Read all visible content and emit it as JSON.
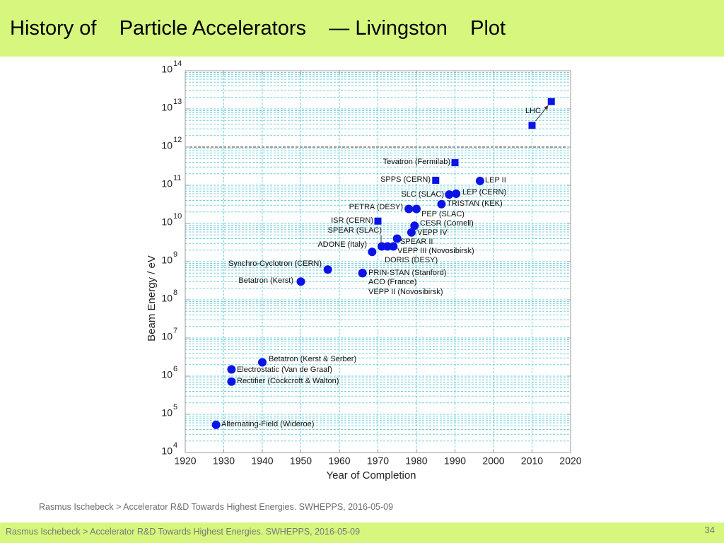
{
  "slide": {
    "title": "History of    Particle Accelerators    — Livingston    Plot",
    "footer_note": "Rasmus Ischebeck > Accelerator R&D Towards Highest Energies. SWHEPPS, 2016-05-09",
    "footer_text": "Rasmus Ischebeck > Accelerator R&D Towards Highest Energies. SWHEPPS, 2016-05-09",
    "page_number": "34"
  },
  "colors": {
    "bar_background": "#d6f67e",
    "marker": "#0a14e6",
    "grid": "#72cfdc",
    "highlight_gridline": "#333333",
    "frame": "#9a9a9a",
    "text": "#222222"
  },
  "chart_data": {
    "type": "scatter",
    "xlabel": "Year of Completion",
    "ylabel": "Beam Energy / eV",
    "xlim": [
      1920,
      2020
    ],
    "ylim": [
      10000.0,
      100000000000000.0
    ],
    "yscale": "log",
    "grid": true,
    "highlighted_gridline_y": 1000000000000.0,
    "x_ticks": [
      1920,
      1930,
      1940,
      1950,
      1960,
      1970,
      1980,
      1990,
      2000,
      2010,
      2020
    ],
    "y_tick_base": "10",
    "y_tick_exponents": [
      "4",
      "5",
      "6",
      "7",
      "8",
      "9",
      "10",
      "11",
      "12",
      "13",
      "14"
    ],
    "points": [
      {
        "label": "Alternating-Field (Wideroe)",
        "x": 1928,
        "y": 53000.0,
        "marker": "circle"
      },
      {
        "label": "Rectifier (Cockcroft & Walton)",
        "x": 1932,
        "y": 720000.0,
        "marker": "circle"
      },
      {
        "label": "Electrostatic (Van de Graaf)",
        "x": 1932,
        "y": 1500000.0,
        "marker": "circle"
      },
      {
        "label": "Betatron (Kerst & Serber)",
        "x": 1940,
        "y": 2300000.0,
        "marker": "circle"
      },
      {
        "label": "Betatron (Kerst)",
        "x": 1950,
        "y": 300000000.0,
        "marker": "circle"
      },
      {
        "label": "Synchro-Cyclotron (CERN)",
        "x": 1957,
        "y": 620000000.0,
        "marker": "circle"
      },
      {
        "label": "PRIN-STAN (Stanford)",
        "x": 1966,
        "y": 500000000.0,
        "marker": "circle"
      },
      {
        "label": "ACO (France)",
        "x": 1966,
        "y": 500000000.0,
        "marker": "circle"
      },
      {
        "label": "VEPP II (Novosibirsk)",
        "x": 1966,
        "y": 500000000.0,
        "marker": "circle"
      },
      {
        "label": "ADONE (Italy)",
        "x": 1968.5,
        "y": 1800000000.0,
        "marker": "circle"
      },
      {
        "label": "ISR (CERN)",
        "x": 1970,
        "y": 11500000000.0,
        "marker": "square"
      },
      {
        "label": "SPEAR (SLAC)",
        "x": 1971,
        "y": 2500000000.0,
        "marker": "circle"
      },
      {
        "label": "DORIS (DESY)",
        "x": 1972.5,
        "y": 2500000000.0,
        "marker": "circle"
      },
      {
        "label": "VEPP III (Novosibirsk)",
        "x": 1974,
        "y": 2500000000.0,
        "marker": "circle"
      },
      {
        "label": "SPEAR II",
        "x": 1975,
        "y": 4000000000.0,
        "marker": "circle"
      },
      {
        "label": "VEPP IV",
        "x": 1978.7,
        "y": 5800000000.0,
        "marker": "circle"
      },
      {
        "label": "CESR (Cornell)",
        "x": 1979.5,
        "y": 8700000000.0,
        "marker": "circle"
      },
      {
        "label": "PETRA (DESY)",
        "x": 1978,
        "y": 24000000000.0,
        "marker": "circle"
      },
      {
        "label": "PEP (SLAC)",
        "x": 1980,
        "y": 24000000000.0,
        "marker": "circle"
      },
      {
        "label": "TRISTAN (KEK)",
        "x": 1986.5,
        "y": 32000000000.0,
        "marker": "circle"
      },
      {
        "label": "SLC (SLAC)",
        "x": 1988.5,
        "y": 57000000000.0,
        "marker": "circle"
      },
      {
        "label": "LEP (CERN)",
        "x": 1990.3,
        "y": 60000000000.0,
        "marker": "circle"
      },
      {
        "label": "SPPS (CERN)",
        "x": 1985,
        "y": 135000000000.0,
        "marker": "square"
      },
      {
        "label": "LEP II",
        "x": 1996.5,
        "y": 130000000000.0,
        "marker": "circle"
      },
      {
        "label": "Tevatron (Fermilab)",
        "x": 1990,
        "y": 390000000000.0,
        "marker": "square"
      },
      {
        "label": "LHC",
        "x": 2010,
        "y": 3700000000000.0,
        "marker": "square"
      },
      {
        "x": 2015,
        "y": 15500000000000.0,
        "marker": "square"
      }
    ],
    "arrows": [
      {
        "from_point": 25,
        "to_point": 26
      }
    ]
  }
}
